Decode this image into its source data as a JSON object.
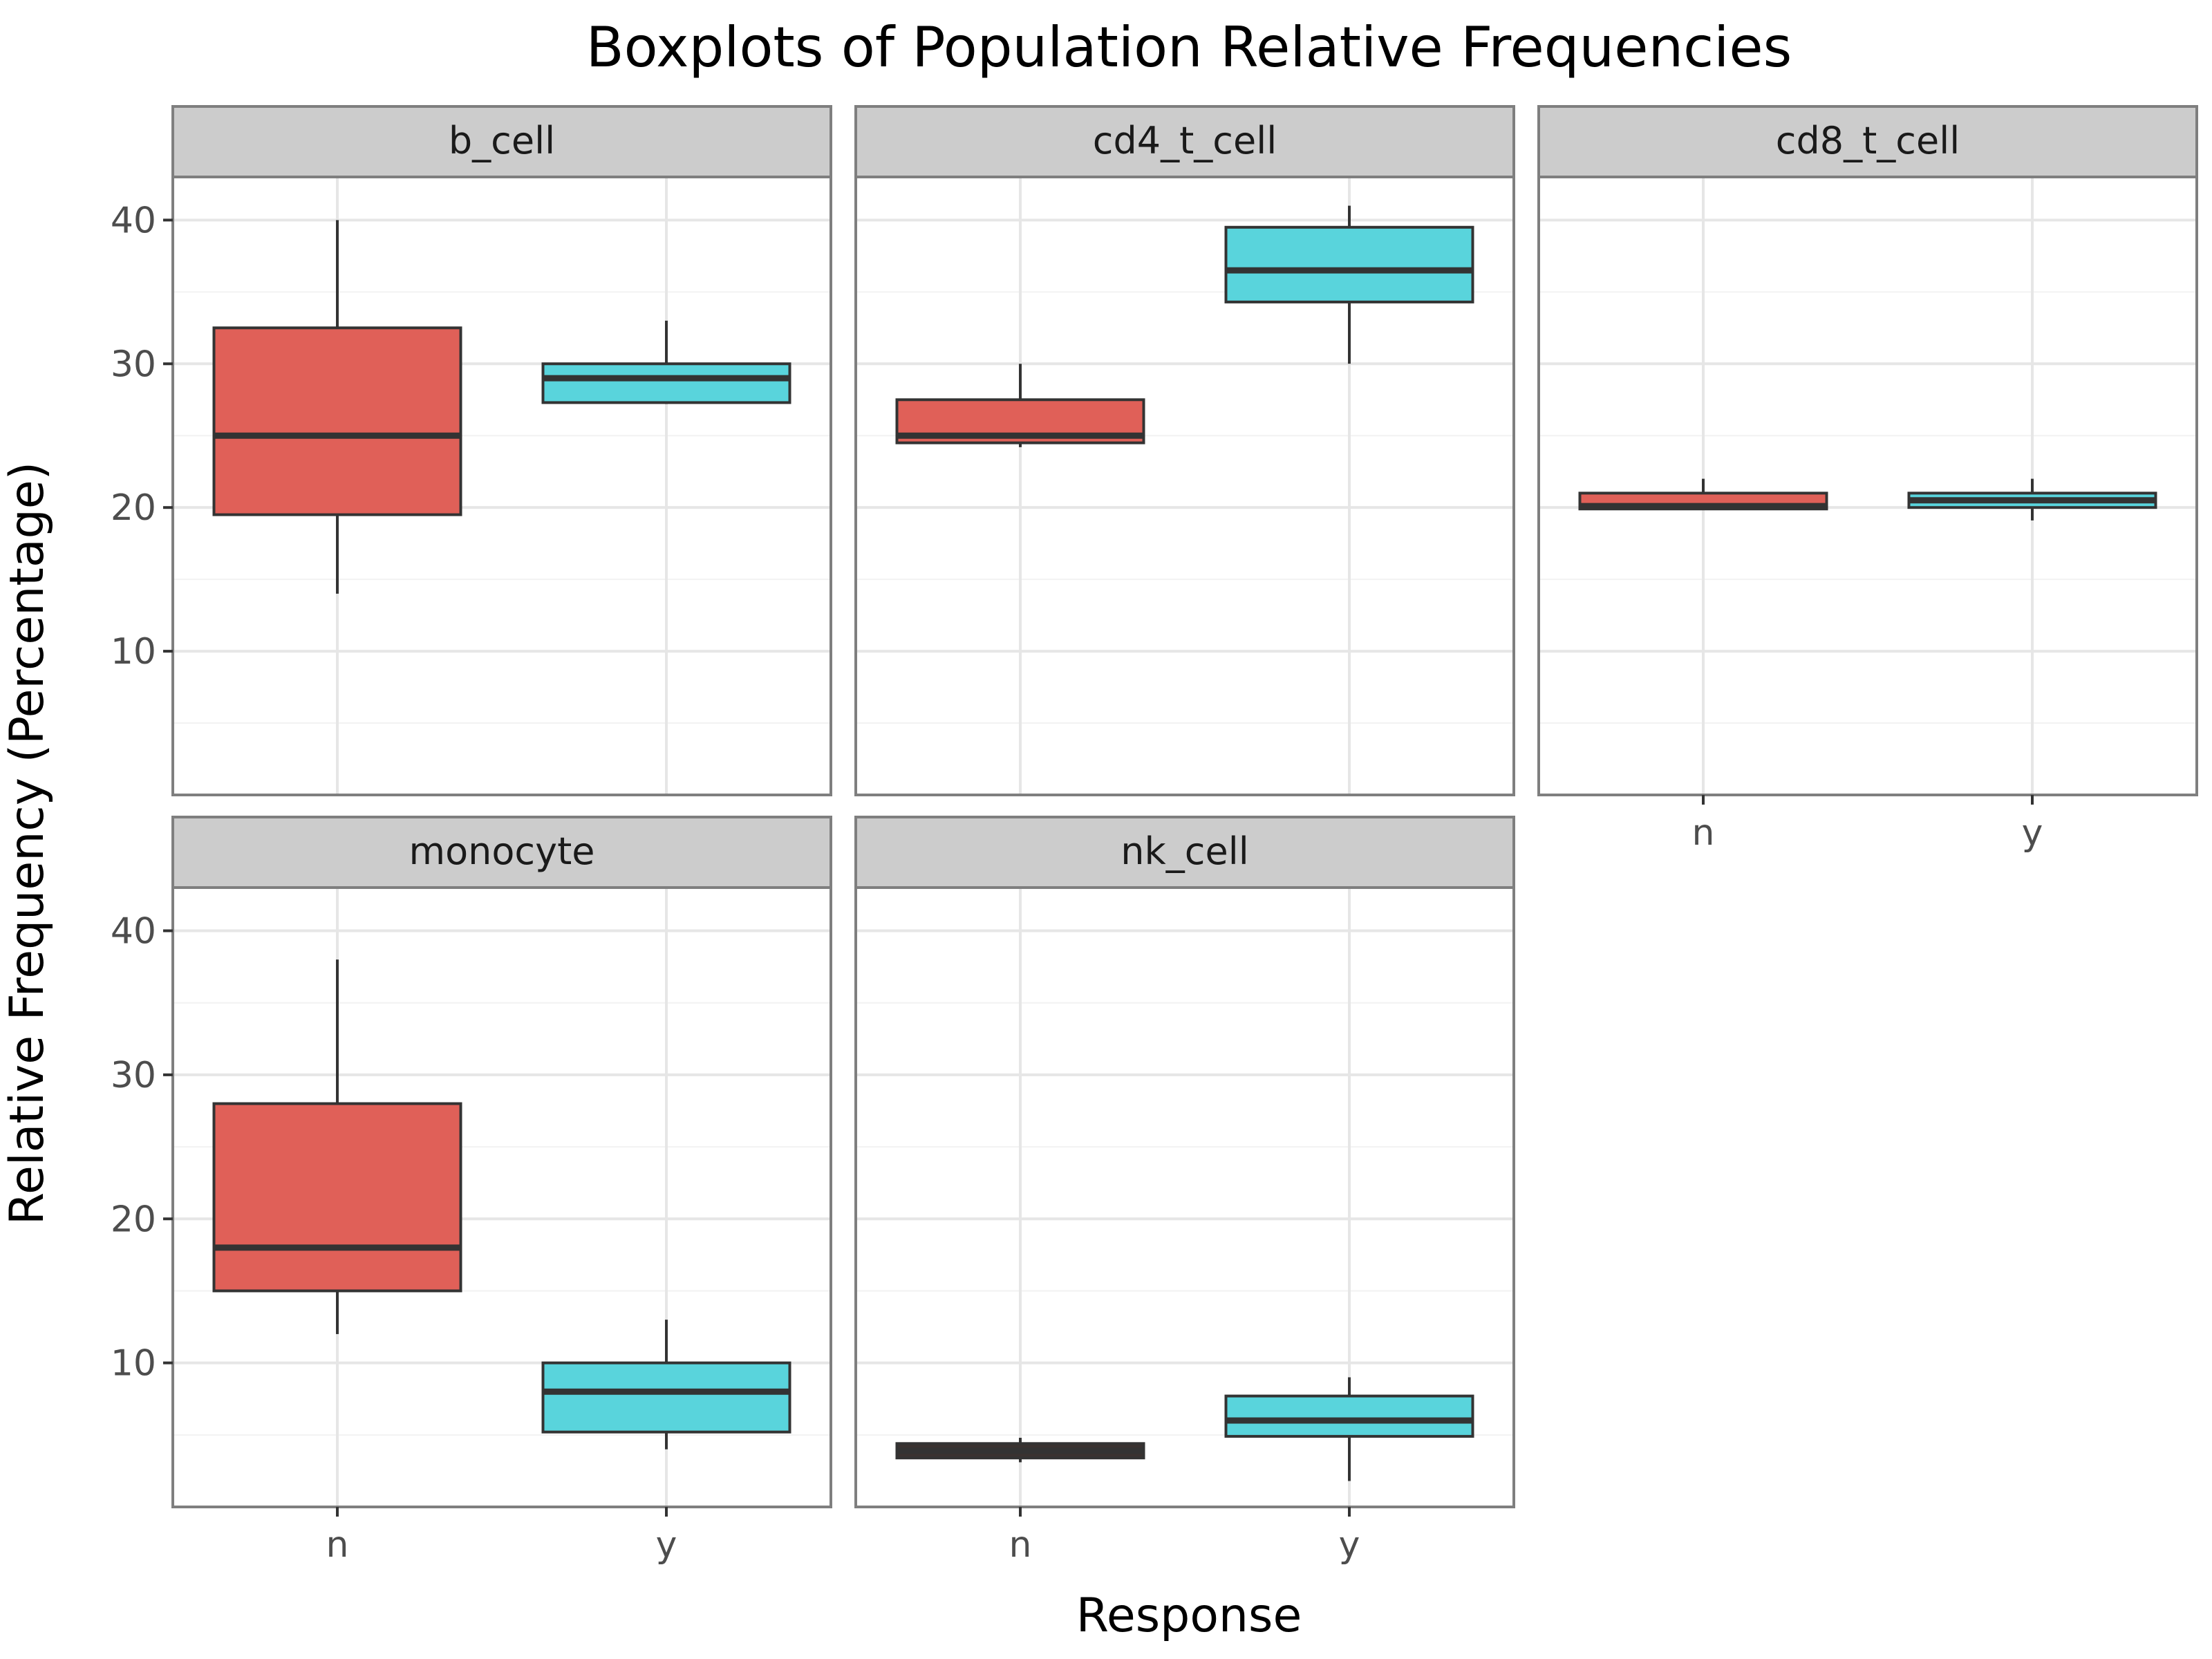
{
  "chart_data": {
    "type": "boxplot",
    "title": "Boxplots of Population Relative Frequencies",
    "xlabel": "Response",
    "ylabel": "Relative Frequency (Percentage)",
    "categories": [
      "n",
      "y"
    ],
    "y_ticks": [
      10,
      20,
      30,
      40
    ],
    "ylim": [
      0,
      43
    ],
    "grid": true,
    "colors": {
      "n": "#e06058",
      "y": "#59d4dc"
    },
    "panels": [
      {
        "name": "b_cell",
        "boxes": [
          {
            "category": "n",
            "min": 14,
            "q1": 19.5,
            "median": 25,
            "q3": 32.5,
            "max": 40
          },
          {
            "category": "y",
            "min": 27.2,
            "q1": 27.3,
            "median": 29,
            "q3": 30,
            "max": 33
          }
        ]
      },
      {
        "name": "cd4_t_cell",
        "boxes": [
          {
            "category": "n",
            "min": 24.2,
            "q1": 24.5,
            "median": 25,
            "q3": 27.5,
            "max": 30
          },
          {
            "category": "y",
            "min": 30,
            "q1": 34.3,
            "median": 36.5,
            "q3": 39.5,
            "max": 41
          }
        ]
      },
      {
        "name": "cd8_t_cell",
        "boxes": [
          {
            "category": "n",
            "min": 19.9,
            "q1": 19.9,
            "median": 20.1,
            "q3": 21,
            "max": 22
          },
          {
            "category": "y",
            "min": 19.1,
            "q1": 20,
            "median": 20.5,
            "q3": 21,
            "max": 22
          }
        ]
      },
      {
        "name": "monocyte",
        "boxes": [
          {
            "category": "n",
            "min": 12,
            "q1": 15,
            "median": 18,
            "q3": 28,
            "max": 38
          },
          {
            "category": "y",
            "min": 4,
            "q1": 5.2,
            "median": 8,
            "q3": 10,
            "max": 13
          }
        ]
      },
      {
        "name": "nk_cell",
        "boxes": [
          {
            "category": "n",
            "min": 3.1,
            "q1": 3.4,
            "median": 3.9,
            "q3": 4.4,
            "max": 4.8,
            "color": "#3a3230"
          },
          {
            "category": "y",
            "min": 1.8,
            "q1": 4.9,
            "median": 6,
            "q3": 7.7,
            "max": 9
          }
        ]
      }
    ]
  }
}
